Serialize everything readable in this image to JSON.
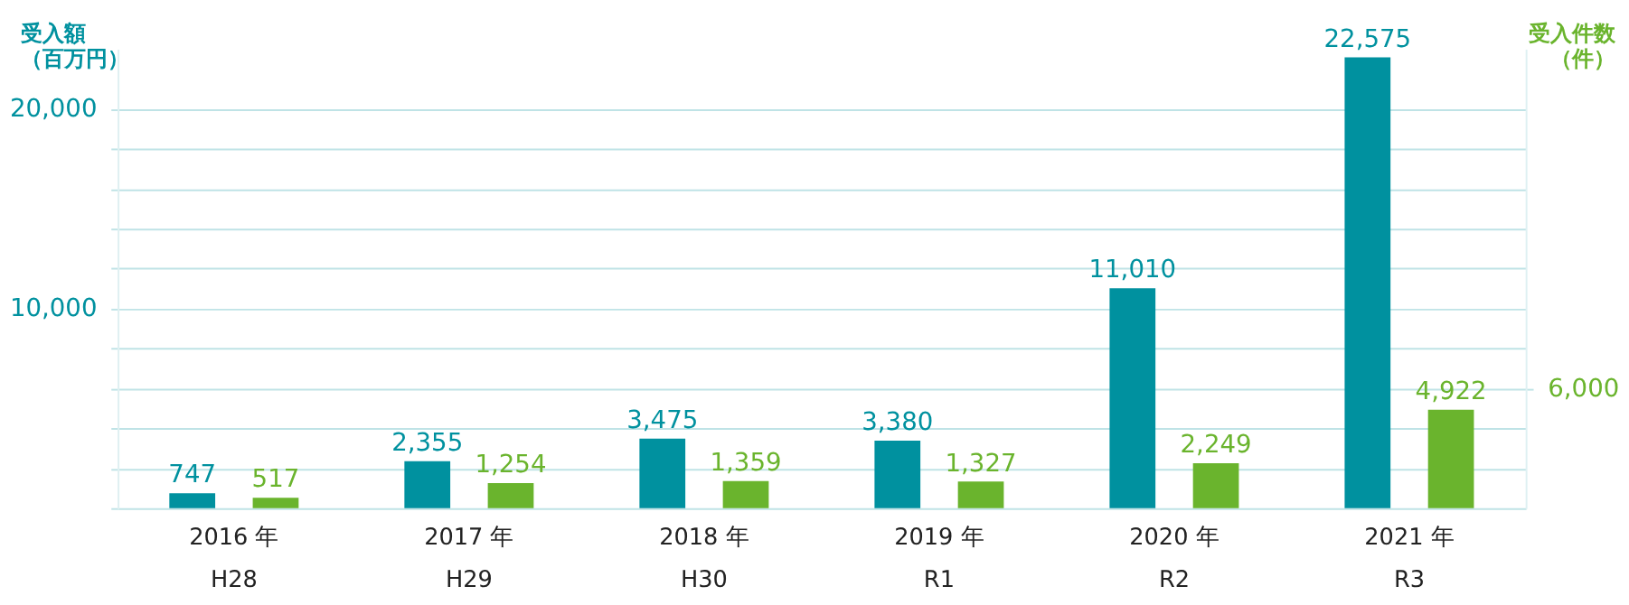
{
  "chart_data": {
    "type": "bar",
    "ylabel": "受入額（百万円）",
    "y2label": "受入件数（件）",
    "categories": [
      "2016 年\nH28",
      "2017 年\nH29",
      "2018 年\nH30",
      "2019 年\nR1",
      "2020 年\nR2",
      "2021 年\nR3"
    ],
    "series": [
      {
        "color": "#00919f",
        "values": [
          747,
          2355,
          3475,
          3380,
          11010,
          22575
        ],
        "value_labels": [
          "747",
          "2,355",
          "3,475",
          "3,380",
          "11,010",
          "22,575"
        ]
      },
      {
        "color": "#6ab42d",
        "axis": "y2",
        "values": [
          517,
          1254,
          1359,
          1327,
          2249,
          4922
        ],
        "value_labels": [
          "517",
          "1,254",
          "1,359",
          "1,327",
          "2,249",
          "4,922"
        ]
      }
    ],
    "ylim": [
      0,
      23000
    ],
    "yticks": [
      {
        "value": 0,
        "label": null
      },
      {
        "value": 2000,
        "label": null
      },
      {
        "value": 4000,
        "label": null
      },
      {
        "value": 6000,
        "label": null
      },
      {
        "value": 8000,
        "label": null
      },
      {
        "value": 10000,
        "label": "10,000"
      },
      {
        "value": 12000,
        "label": null
      },
      {
        "value": 14000,
        "label": null
      },
      {
        "value": 16000,
        "label": null
      },
      {
        "value": 18000,
        "label": null
      },
      {
        "value": 20000,
        "label": "20,000"
      }
    ],
    "y2lim": [
      0,
      23000
    ],
    "y2ticks": [
      {
        "value": 6000,
        "label": "6,000"
      }
    ],
    "grid": "y"
  }
}
